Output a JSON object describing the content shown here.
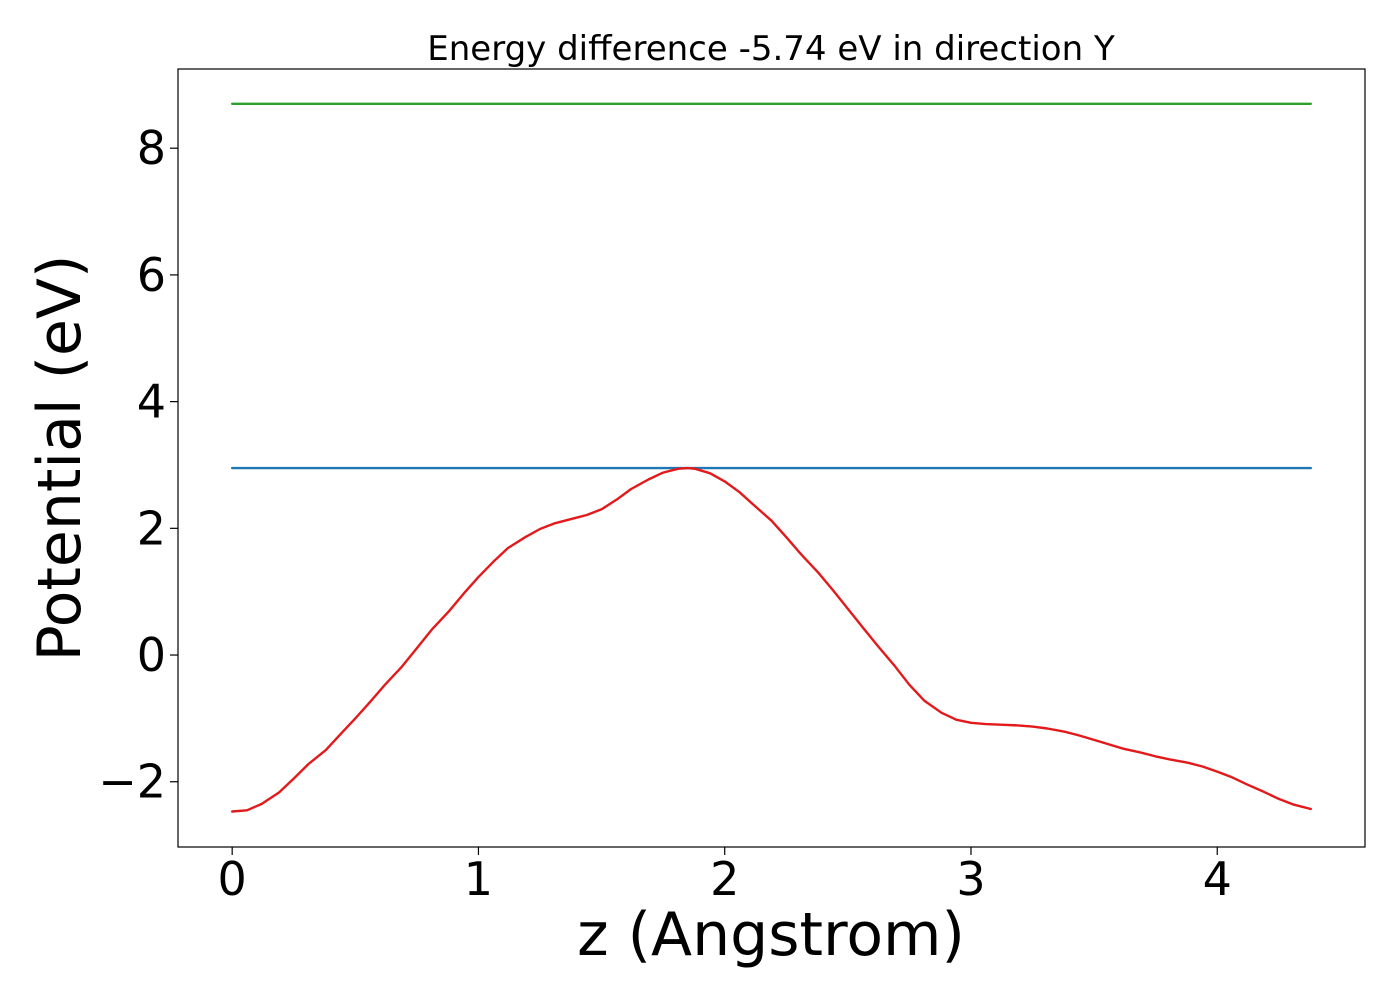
{
  "chart_data": {
    "type": "line",
    "title": "Energy difference -5.74 eV in direction Y",
    "xlabel": "z (Angstrom)",
    "ylabel": "Potential (eV)",
    "xlim": [
      -0.22,
      4.6
    ],
    "ylim": [
      -3.03,
      9.25
    ],
    "xticks": [
      0,
      1,
      2,
      3,
      4
    ],
    "xtick_labels": [
      "0",
      "1",
      "2",
      "3",
      "4"
    ],
    "yticks": [
      -2,
      0,
      2,
      4,
      6,
      8
    ],
    "ytick_labels": [
      "−2",
      "0",
      "2",
      "4",
      "6",
      "8"
    ],
    "grid": false,
    "series": [
      {
        "color": "#2ca02c",
        "x": [
          0,
          4.38
        ],
        "y": [
          8.7,
          8.7
        ]
      },
      {
        "color": "#1f77b4",
        "x": [
          0,
          4.38
        ],
        "y": [
          2.95,
          2.95
        ]
      },
      {
        "color": "#e31a1c",
        "x": [
          0,
          0.06,
          0.12,
          0.19,
          0.25,
          0.31,
          0.38,
          0.44,
          0.5,
          0.56,
          0.62,
          0.69,
          0.75,
          0.81,
          0.88,
          0.94,
          1.0,
          1.06,
          1.12,
          1.19,
          1.25,
          1.31,
          1.38,
          1.44,
          1.5,
          1.56,
          1.62,
          1.69,
          1.75,
          1.81,
          1.85,
          1.88,
          1.94,
          2.0,
          2.06,
          2.12,
          2.19,
          2.25,
          2.31,
          2.38,
          2.44,
          2.5,
          2.56,
          2.62,
          2.69,
          2.75,
          2.81,
          2.88,
          2.94,
          3.0,
          3.06,
          3.12,
          3.19,
          3.25,
          3.31,
          3.38,
          3.44,
          3.5,
          3.56,
          3.62,
          3.69,
          3.75,
          3.81,
          3.88,
          3.94,
          4.0,
          4.06,
          4.12,
          4.19,
          4.25,
          4.31,
          4.38
        ],
        "y": [
          -2.47,
          -2.45,
          -2.35,
          -2.17,
          -1.95,
          -1.72,
          -1.5,
          -1.25,
          -1.0,
          -0.74,
          -0.47,
          -0.18,
          0.11,
          0.4,
          0.69,
          0.97,
          1.23,
          1.47,
          1.69,
          1.86,
          1.99,
          2.08,
          2.15,
          2.21,
          2.3,
          2.45,
          2.62,
          2.77,
          2.88,
          2.94,
          2.95,
          2.94,
          2.87,
          2.74,
          2.57,
          2.36,
          2.12,
          1.86,
          1.59,
          1.3,
          1.02,
          0.73,
          0.44,
          0.15,
          -0.17,
          -0.47,
          -0.72,
          -0.91,
          -1.02,
          -1.07,
          -1.09,
          -1.1,
          -1.11,
          -1.13,
          -1.16,
          -1.21,
          -1.27,
          -1.34,
          -1.41,
          -1.48,
          -1.54,
          -1.6,
          -1.65,
          -1.7,
          -1.76,
          -1.84,
          -1.93,
          -2.04,
          -2.16,
          -2.27,
          -2.36,
          -2.43
        ]
      }
    ]
  }
}
